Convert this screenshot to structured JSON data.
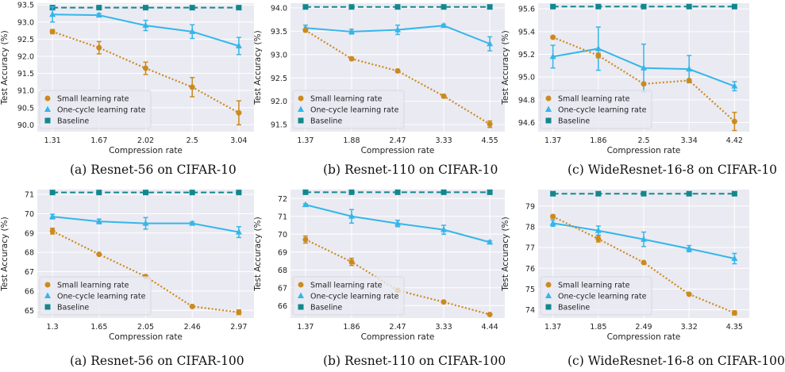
{
  "ylabel": "Test Accuracy (%)",
  "xlabel": "Compression rate",
  "legend": [
    "Small learning rate",
    "One-cycle learning rate",
    "Baseline"
  ],
  "colors": {
    "small": "#cc8a1e",
    "onecycle": "#34b6ea",
    "baseline": "#12888e",
    "plot_bg": "#eaeaf2",
    "grid": "#ffffff"
  },
  "chart_data": [
    {
      "type": "line",
      "caption": "(a) Resnet-56 on CIFAR-10",
      "categories": [
        "1.31",
        "1.67",
        "2.02",
        "2.5",
        "3.04"
      ],
      "ylim": [
        89.8,
        93.55
      ],
      "yticks": [
        90.0,
        90.5,
        91.0,
        91.5,
        92.0,
        92.5,
        93.0,
        93.5
      ],
      "ytick_labels": [
        "90.0",
        "90.5",
        "91.0",
        "91.5",
        "92.0",
        "92.5",
        "93.0",
        "93.5"
      ],
      "grid": true,
      "legend_position": "lower-left",
      "series": [
        {
          "name": "Small learning rate",
          "values": [
            92.72,
            92.25,
            91.65,
            91.1,
            90.35
          ],
          "errors": [
            0.06,
            0.18,
            0.18,
            0.28,
            0.35
          ]
        },
        {
          "name": "One-cycle learning rate",
          "values": [
            93.22,
            93.2,
            92.9,
            92.72,
            92.3
          ],
          "errors": [
            0.22,
            0.05,
            0.15,
            0.2,
            0.25
          ]
        },
        {
          "name": "Baseline",
          "values": [
            93.42,
            93.42,
            93.42,
            93.42,
            93.42
          ]
        }
      ]
    },
    {
      "type": "line",
      "caption": "(b) Resnet-110 on CIFAR-10",
      "categories": [
        "1.37",
        "1.88",
        "2.47",
        "3.33",
        "4.55"
      ],
      "ylim": [
        91.35,
        94.1
      ],
      "yticks": [
        91.5,
        92.0,
        92.5,
        93.0,
        93.5,
        94.0
      ],
      "ytick_labels": [
        "91.5",
        "92.0",
        "92.5",
        "93.0",
        "93.5",
        "94.0"
      ],
      "grid": true,
      "legend_position": "lower-left",
      "series": [
        {
          "name": "Small learning rate",
          "values": [
            93.52,
            92.91,
            92.65,
            92.11,
            91.51
          ],
          "errors": [
            0.03,
            0.03,
            0.03,
            0.03,
            0.07
          ]
        },
        {
          "name": "One-cycle learning rate",
          "values": [
            93.57,
            93.49,
            93.53,
            93.62,
            93.23
          ],
          "errors": [
            0.06,
            0.05,
            0.1,
            0.03,
            0.15
          ]
        },
        {
          "name": "Baseline",
          "values": [
            94.02,
            94.02,
            94.02,
            94.02,
            94.02
          ]
        }
      ]
    },
    {
      "type": "line",
      "caption": "(c) WideResnet-16-8 on CIFAR-10",
      "categories": [
        "1.37",
        "1.86",
        "2.5",
        "3.34",
        "4.42"
      ],
      "ylim": [
        94.52,
        95.65
      ],
      "yticks": [
        94.6,
        94.8,
        95.0,
        95.2,
        95.4,
        95.6
      ],
      "ytick_labels": [
        "94.6",
        "94.8",
        "95.0",
        "95.2",
        "95.4",
        "95.6"
      ],
      "grid": true,
      "legend_position": "lower-left",
      "series": [
        {
          "name": "Small learning rate",
          "values": [
            95.35,
            95.19,
            94.94,
            94.97,
            94.61
          ],
          "errors": [
            0.01,
            0.02,
            0.01,
            0.01,
            0.08
          ]
        },
        {
          "name": "One-cycle learning rate",
          "values": [
            95.18,
            95.25,
            95.08,
            95.07,
            94.92
          ],
          "errors": [
            0.1,
            0.19,
            0.21,
            0.12,
            0.04
          ]
        },
        {
          "name": "Baseline",
          "values": [
            95.62,
            95.62,
            95.62,
            95.62,
            95.62
          ]
        }
      ]
    },
    {
      "type": "line",
      "caption": "(a) Resnet-56 on CIFAR-100",
      "categories": [
        "1.3",
        "1.65",
        "2.05",
        "2.46",
        "2.97"
      ],
      "ylim": [
        64.6,
        71.25
      ],
      "yticks": [
        65,
        66,
        67,
        68,
        69,
        70,
        71
      ],
      "ytick_labels": [
        "65",
        "66",
        "67",
        "68",
        "69",
        "70",
        "71"
      ],
      "grid": true,
      "legend_position": "lower-left",
      "series": [
        {
          "name": "Small learning rate",
          "values": [
            69.1,
            67.9,
            66.75,
            65.2,
            64.9
          ],
          "errors": [
            0.15,
            0.03,
            0.03,
            0.05,
            0.12
          ]
        },
        {
          "name": "One-cycle learning rate",
          "values": [
            69.85,
            69.6,
            69.5,
            69.5,
            69.05
          ],
          "errors": [
            0.12,
            0.12,
            0.3,
            0.08,
            0.28
          ]
        },
        {
          "name": "Baseline",
          "values": [
            71.1,
            71.1,
            71.1,
            71.1,
            71.1
          ]
        }
      ]
    },
    {
      "type": "line",
      "caption": "(b) Resnet-110 on CIFAR-100",
      "categories": [
        "1.37",
        "1.86",
        "2.47",
        "3.33",
        "4.44"
      ],
      "ylim": [
        65.3,
        72.5
      ],
      "yticks": [
        66,
        67,
        68,
        69,
        70,
        71,
        72
      ],
      "ytick_labels": [
        "66",
        "67",
        "68",
        "69",
        "70",
        "71",
        "72"
      ],
      "grid": true,
      "legend_position": "lower-left",
      "series": [
        {
          "name": "Small learning rate",
          "values": [
            69.7,
            68.45,
            66.85,
            66.2,
            65.5
          ],
          "errors": [
            0.2,
            0.2,
            0.1,
            0.05,
            0.05
          ]
        },
        {
          "name": "One-cycle learning rate",
          "values": [
            71.65,
            71.0,
            70.6,
            70.25,
            69.55
          ],
          "errors": [
            0.05,
            0.38,
            0.18,
            0.25,
            0.08
          ]
        },
        {
          "name": "Baseline",
          "values": [
            72.35,
            72.35,
            72.35,
            72.35,
            72.35
          ]
        }
      ]
    },
    {
      "type": "line",
      "caption": "(c) WideResnet-16-8 on CIFAR-100",
      "categories": [
        "1.37",
        "1.85",
        "2.49",
        "3.32",
        "4.35"
      ],
      "ylim": [
        73.6,
        79.8
      ],
      "yticks": [
        74,
        75,
        76,
        77,
        78,
        79
      ],
      "ytick_labels": [
        "74",
        "75",
        "76",
        "77",
        "78",
        "79"
      ],
      "grid": true,
      "legend_position": "lower-left",
      "series": [
        {
          "name": "Small learning rate",
          "values": [
            78.5,
            77.42,
            76.28,
            74.75,
            73.85
          ],
          "errors": [
            0.08,
            0.15,
            0.04,
            0.04,
            0.1
          ]
        },
        {
          "name": "One-cycle learning rate",
          "values": [
            78.18,
            77.82,
            77.4,
            76.95,
            76.47
          ],
          "errors": [
            0.15,
            0.22,
            0.35,
            0.15,
            0.25
          ]
        },
        {
          "name": "Baseline",
          "values": [
            79.6,
            79.6,
            79.6,
            79.6,
            79.6
          ]
        }
      ]
    }
  ]
}
